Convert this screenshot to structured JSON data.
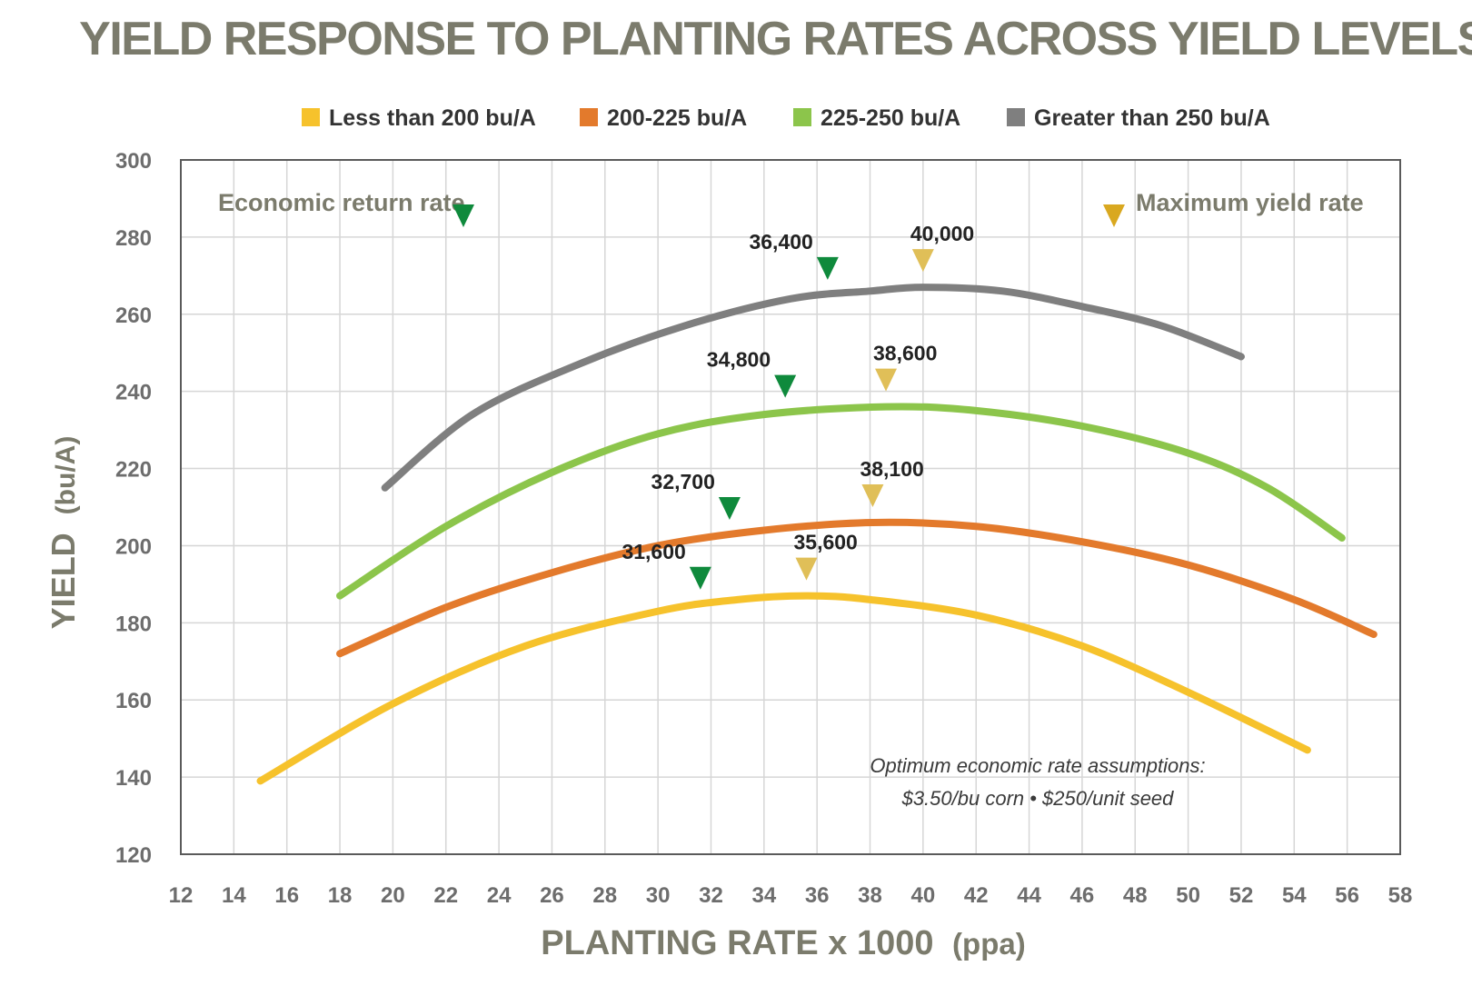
{
  "chart_data": {
    "type": "line",
    "title": "YIELD RESPONSE TO PLANTING RATES ACROSS YIELD LEVELS",
    "xlabel": "PLANTING RATE x 1000",
    "xlabel_unit": "(ppa)",
    "ylabel": "YIELD",
    "ylabel_unit": "(bu/A)",
    "xlim": [
      12,
      58
    ],
    "ylim": [
      120,
      300
    ],
    "x_ticks": [
      12,
      14,
      16,
      18,
      20,
      22,
      24,
      26,
      28,
      30,
      32,
      34,
      36,
      38,
      40,
      42,
      44,
      46,
      48,
      50,
      52,
      54,
      56,
      58
    ],
    "y_ticks": [
      120,
      140,
      160,
      180,
      200,
      220,
      240,
      260,
      280,
      300
    ],
    "grid": true,
    "legend_position": "top",
    "series": [
      {
        "name": "Less than 200 bu/A",
        "color": "#f6c22c",
        "x": [
          15,
          20,
          25,
          30,
          33,
          35.6,
          38,
          42,
          46,
          50,
          54.5
        ],
        "y": [
          139,
          159,
          174,
          183,
          186,
          187,
          186,
          182,
          174,
          162,
          147
        ],
        "economic_rate": 31.6,
        "economic_label": "31,600",
        "max_rate": 35.6,
        "max_label": "35,600"
      },
      {
        "name": "200-225 bu/A",
        "color": "#e37a2c",
        "x": [
          18,
          22,
          26,
          30,
          34,
          38.1,
          42,
          46,
          50,
          54,
          57
        ],
        "y": [
          172,
          184,
          193,
          200,
          204,
          206,
          205,
          201,
          195,
          186,
          177
        ],
        "economic_rate": 32.7,
        "economic_label": "32,700",
        "max_rate": 38.1,
        "max_label": "38,100"
      },
      {
        "name": "225-250 bu/A",
        "color": "#8cc54b",
        "x": [
          18,
          22,
          26,
          30,
          34,
          38.6,
          42,
          46,
          50,
          53,
          55.8
        ],
        "y": [
          187,
          205,
          219,
          229,
          234,
          236,
          235,
          231,
          224,
          215,
          202
        ],
        "economic_rate": 34.8,
        "economic_label": "34,800",
        "max_rate": 38.6,
        "max_label": "38,600"
      },
      {
        "name": "Greater than 250 bu/A",
        "color": "#7f7f7f",
        "x": [
          19.7,
          23,
          27,
          31,
          35,
          38,
          40,
          43,
          46,
          49,
          52
        ],
        "y": [
          215,
          234,
          247,
          257,
          264,
          266,
          267,
          266,
          262,
          257,
          249
        ],
        "economic_rate": 36.4,
        "economic_label": "36,400",
        "max_rate": 40.0,
        "max_label": "40,000"
      }
    ],
    "annotations": {
      "economic_return_label": "Economic return rate",
      "economic_color": "#0f8a3c",
      "maximum_yield_label": "Maximum yield rate",
      "maximum_color": "#d9a820",
      "maximum_marker_color": "#e0bf58",
      "assumptions_line1": "Optimum economic rate assumptions:",
      "assumptions_line2": "$3.50/bu corn • $250/unit seed"
    }
  }
}
